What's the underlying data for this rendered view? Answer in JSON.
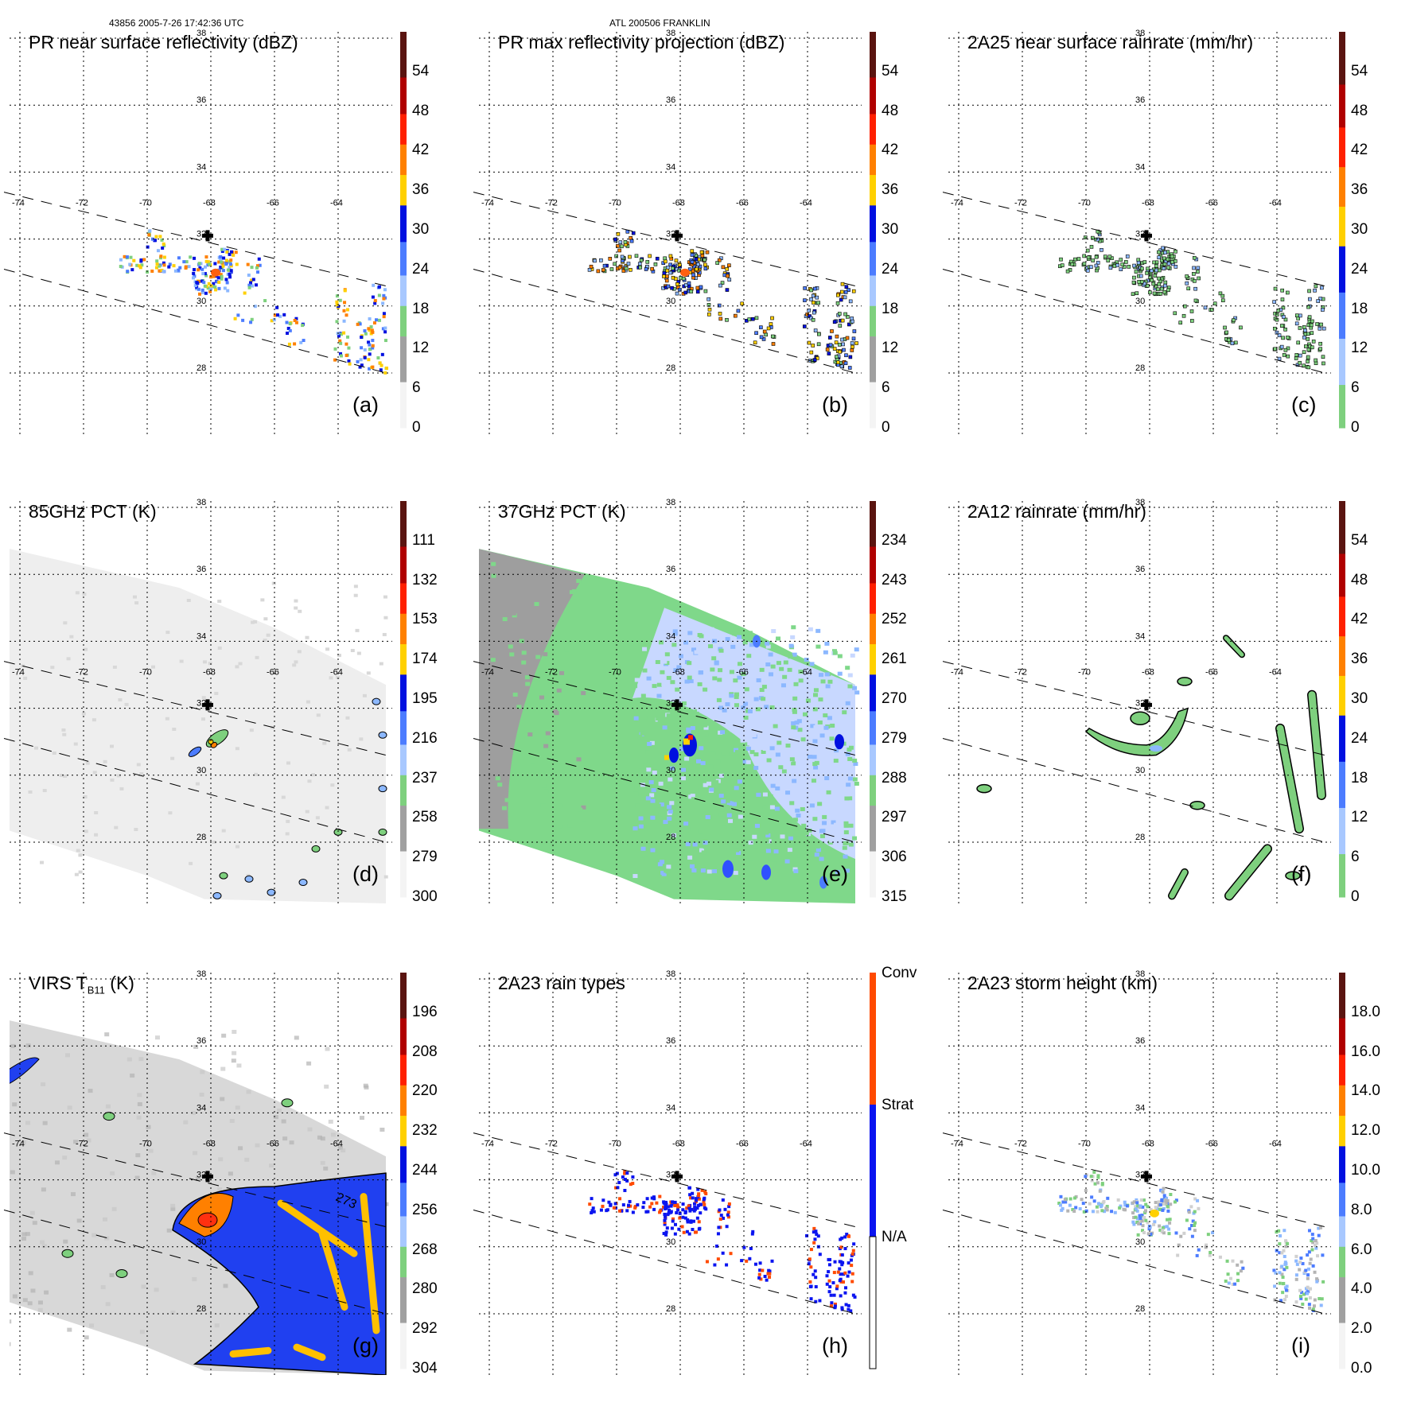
{
  "header": {
    "left": "43856 2005-7-26 17:42:36 UTC",
    "center": "ATL 200506 FRANKLIN"
  },
  "chart_data": [
    {
      "id": "a",
      "type": "heatmap",
      "title": "PR near surface reflectivity (dBZ)",
      "panel_label": "(a)",
      "field": "swath_narrow",
      "style": "pr",
      "contoured": false,
      "colorbar": {
        "ticks": [
          "54",
          "48",
          "42",
          "36",
          "30",
          "24",
          "18",
          "12",
          "6",
          "0"
        ],
        "range": [
          0,
          60
        ],
        "bands": [
          "#5a1410",
          "#b00000",
          "#ff2000",
          "#ff8000",
          "#ffd000",
          "#0010e0",
          "#4c7cff",
          "#a8c8ff",
          "#7ed07e",
          "#a0a0a0",
          "#f4f4f4"
        ]
      }
    },
    {
      "id": "b",
      "type": "heatmap",
      "title": "PR max reflectivity projection (dBZ)",
      "panel_label": "(b)",
      "field": "swath_narrow",
      "style": "pr",
      "contoured": true,
      "colorbar": {
        "ticks": [
          "54",
          "48",
          "42",
          "36",
          "30",
          "24",
          "18",
          "12",
          "6",
          "0"
        ],
        "range": [
          0,
          60
        ],
        "bands": [
          "#5a1410",
          "#b00000",
          "#ff2000",
          "#ff8000",
          "#ffd000",
          "#0010e0",
          "#4c7cff",
          "#a8c8ff",
          "#7ed07e",
          "#a0a0a0",
          "#f4f4f4"
        ]
      }
    },
    {
      "id": "c",
      "type": "heatmap",
      "title": "2A25 near surface rainrate (mm/hr)",
      "panel_label": "(c)",
      "field": "swath_narrow",
      "style": "rain",
      "contoured": true,
      "colorbar": {
        "ticks": [
          "54",
          "48",
          "42",
          "36",
          "30",
          "24",
          "18",
          "12",
          "6",
          "0"
        ],
        "range": [
          0,
          60
        ],
        "bands": [
          "#5a1410",
          "#b00000",
          "#ff2000",
          "#ff8000",
          "#ffd000",
          "#0010e0",
          "#4c7cff",
          "#a8c8ff",
          "#7ed07e"
        ]
      }
    },
    {
      "id": "d",
      "type": "heatmap",
      "title": "85GHz PCT (K)",
      "panel_label": "(d)",
      "field": "swath_wide",
      "style": "pct85",
      "contoured": true,
      "colorbar": {
        "ticks": [
          "111",
          "132",
          "153",
          "174",
          "195",
          "216",
          "237",
          "258",
          "279",
          "300"
        ],
        "range": [
          90,
          300
        ],
        "bands": [
          "#5a1410",
          "#b00000",
          "#ff2000",
          "#ff8000",
          "#ffd000",
          "#0010e0",
          "#4c7cff",
          "#a8c8ff",
          "#7ed07e",
          "#a0a0a0",
          "#f4f4f4"
        ]
      }
    },
    {
      "id": "e",
      "type": "heatmap",
      "title": "37GHz PCT (K)",
      "panel_label": "(e)",
      "field": "swath_wide",
      "style": "pct37",
      "contoured": false,
      "colorbar": {
        "ticks": [
          "234",
          "243",
          "252",
          "261",
          "270",
          "279",
          "288",
          "297",
          "306",
          "315"
        ],
        "range": [
          225,
          315
        ],
        "bands": [
          "#5a1410",
          "#b00000",
          "#ff2000",
          "#ff8000",
          "#ffd000",
          "#0010e0",
          "#4c7cff",
          "#a8c8ff",
          "#7ed07e",
          "#a0a0a0",
          "#f4f4f4"
        ]
      }
    },
    {
      "id": "f",
      "type": "heatmap",
      "title": "2A12 rainrate (mm/hr)",
      "panel_label": "(f)",
      "field": "swath_wide_none",
      "style": "rain12",
      "contoured": true,
      "colorbar": {
        "ticks": [
          "54",
          "48",
          "42",
          "36",
          "30",
          "24",
          "18",
          "12",
          "6",
          "0"
        ],
        "range": [
          0,
          60
        ],
        "bands": [
          "#5a1410",
          "#b00000",
          "#ff2000",
          "#ff8000",
          "#ffd000",
          "#0010e0",
          "#4c7cff",
          "#a8c8ff",
          "#7ed07e"
        ]
      }
    },
    {
      "id": "g",
      "type": "heatmap",
      "title_main": "VIRS T",
      "title_sub": "B11",
      "title_unit": " (K)",
      "panel_label": "(g)",
      "field": "swath_wide",
      "style": "virs",
      "contoured": true,
      "contour_label": "273",
      "colorbar": {
        "ticks": [
          "196",
          "208",
          "220",
          "232",
          "244",
          "256",
          "268",
          "280",
          "292",
          "304"
        ],
        "range": [
          184,
          304
        ],
        "bands": [
          "#5a1410",
          "#b00000",
          "#ff2000",
          "#ff8000",
          "#ffd000",
          "#0010e0",
          "#4c7cff",
          "#a8c8ff",
          "#7ed07e",
          "#a0a0a0",
          "#f4f4f4"
        ]
      }
    },
    {
      "id": "h",
      "type": "heatmap",
      "title": "2A23 rain types",
      "panel_label": "(h)",
      "field": "swath_narrow",
      "style": "raintype",
      "contoured": false,
      "colorbar": {
        "categories": [
          "Conv",
          "Strat",
          "N/A"
        ],
        "bands": [
          "#ff4a00",
          "#0a14f0",
          "#ffffff"
        ]
      }
    },
    {
      "id": "i",
      "type": "heatmap",
      "title": "2A23 storm height (km)",
      "panel_label": "(i)",
      "field": "swath_narrow",
      "style": "height",
      "contoured": false,
      "colorbar": {
        "ticks": [
          "18.0",
          "16.0",
          "14.0",
          "12.0",
          "10.0",
          "8.0",
          "6.0",
          "4.0",
          "2.0",
          "0.0"
        ],
        "range": [
          0,
          20
        ],
        "bands": [
          "#5a1410",
          "#b00000",
          "#ff2000",
          "#ff8000",
          "#ffd000",
          "#0010e0",
          "#4c7cff",
          "#a8c8ff",
          "#7ed07e",
          "#a0a0a0",
          "#f4f4f4"
        ]
      }
    }
  ],
  "map": {
    "lon_ticks": [
      "-74",
      "-72",
      "-70",
      "-68",
      "-66",
      "-64"
    ],
    "lat_ticks": [
      "38",
      "36",
      "34",
      "32",
      "30",
      "28"
    ],
    "lon_range": [
      -74.5,
      -62.5
    ],
    "lat_range": [
      38,
      26
    ],
    "storm_center": {
      "lon": -68.1,
      "lat": 32.1
    }
  }
}
